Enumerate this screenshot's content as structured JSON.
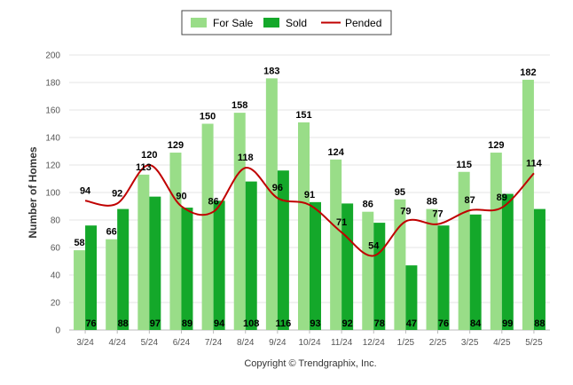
{
  "chart_data": {
    "type": "bar",
    "categories": [
      "3/24",
      "4/24",
      "5/24",
      "6/24",
      "7/24",
      "8/24",
      "9/24",
      "10/24",
      "11/24",
      "12/24",
      "1/25",
      "2/25",
      "3/25",
      "4/25",
      "5/25"
    ],
    "series": [
      {
        "name": "For Sale",
        "type": "bar",
        "color": "#99dd88",
        "values": [
          58,
          66,
          113,
          129,
          150,
          158,
          183,
          151,
          124,
          86,
          95,
          88,
          115,
          129,
          182
        ]
      },
      {
        "name": "Sold",
        "type": "bar",
        "color": "#14a82a",
        "values": [
          76,
          88,
          97,
          89,
          94,
          108,
          116,
          93,
          92,
          78,
          47,
          76,
          84,
          99,
          88
        ]
      },
      {
        "name": "Pended",
        "type": "line",
        "color": "#c00000",
        "values": [
          94,
          92,
          120,
          90,
          86,
          118,
          96,
          91,
          71,
          54,
          79,
          77,
          87,
          89,
          114
        ]
      }
    ],
    "ylabel": "Number of Homes",
    "ylim": [
      0,
      200
    ],
    "yticks": [
      0,
      20,
      40,
      60,
      80,
      100,
      120,
      140,
      160,
      180,
      200
    ],
    "grid": true,
    "legend_position": "top-center",
    "footer": "Copyright © Trendgraphix, Inc."
  }
}
